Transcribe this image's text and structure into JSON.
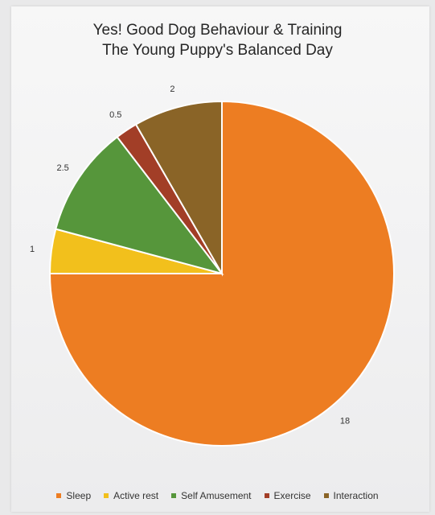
{
  "chart_data": {
    "type": "pie",
    "title": "Yes! Good Dog Behaviour & Training",
    "subtitle": "The Young Puppy's Balanced Day",
    "slices": [
      {
        "name": "Sleep",
        "value": 18,
        "label": "18",
        "color": "#ed7d22"
      },
      {
        "name": "Active rest",
        "value": 1,
        "label": "1",
        "color": "#f2c01c"
      },
      {
        "name": "Self Amusement",
        "value": 2.5,
        "label": "2.5",
        "color": "#56963b"
      },
      {
        "name": "Exercise",
        "value": 0.5,
        "label": "0.5",
        "color": "#a23e27"
      },
      {
        "name": "Interaction",
        "value": 2,
        "label": "2",
        "color": "#8a6427"
      }
    ],
    "legend_position": "bottom"
  }
}
